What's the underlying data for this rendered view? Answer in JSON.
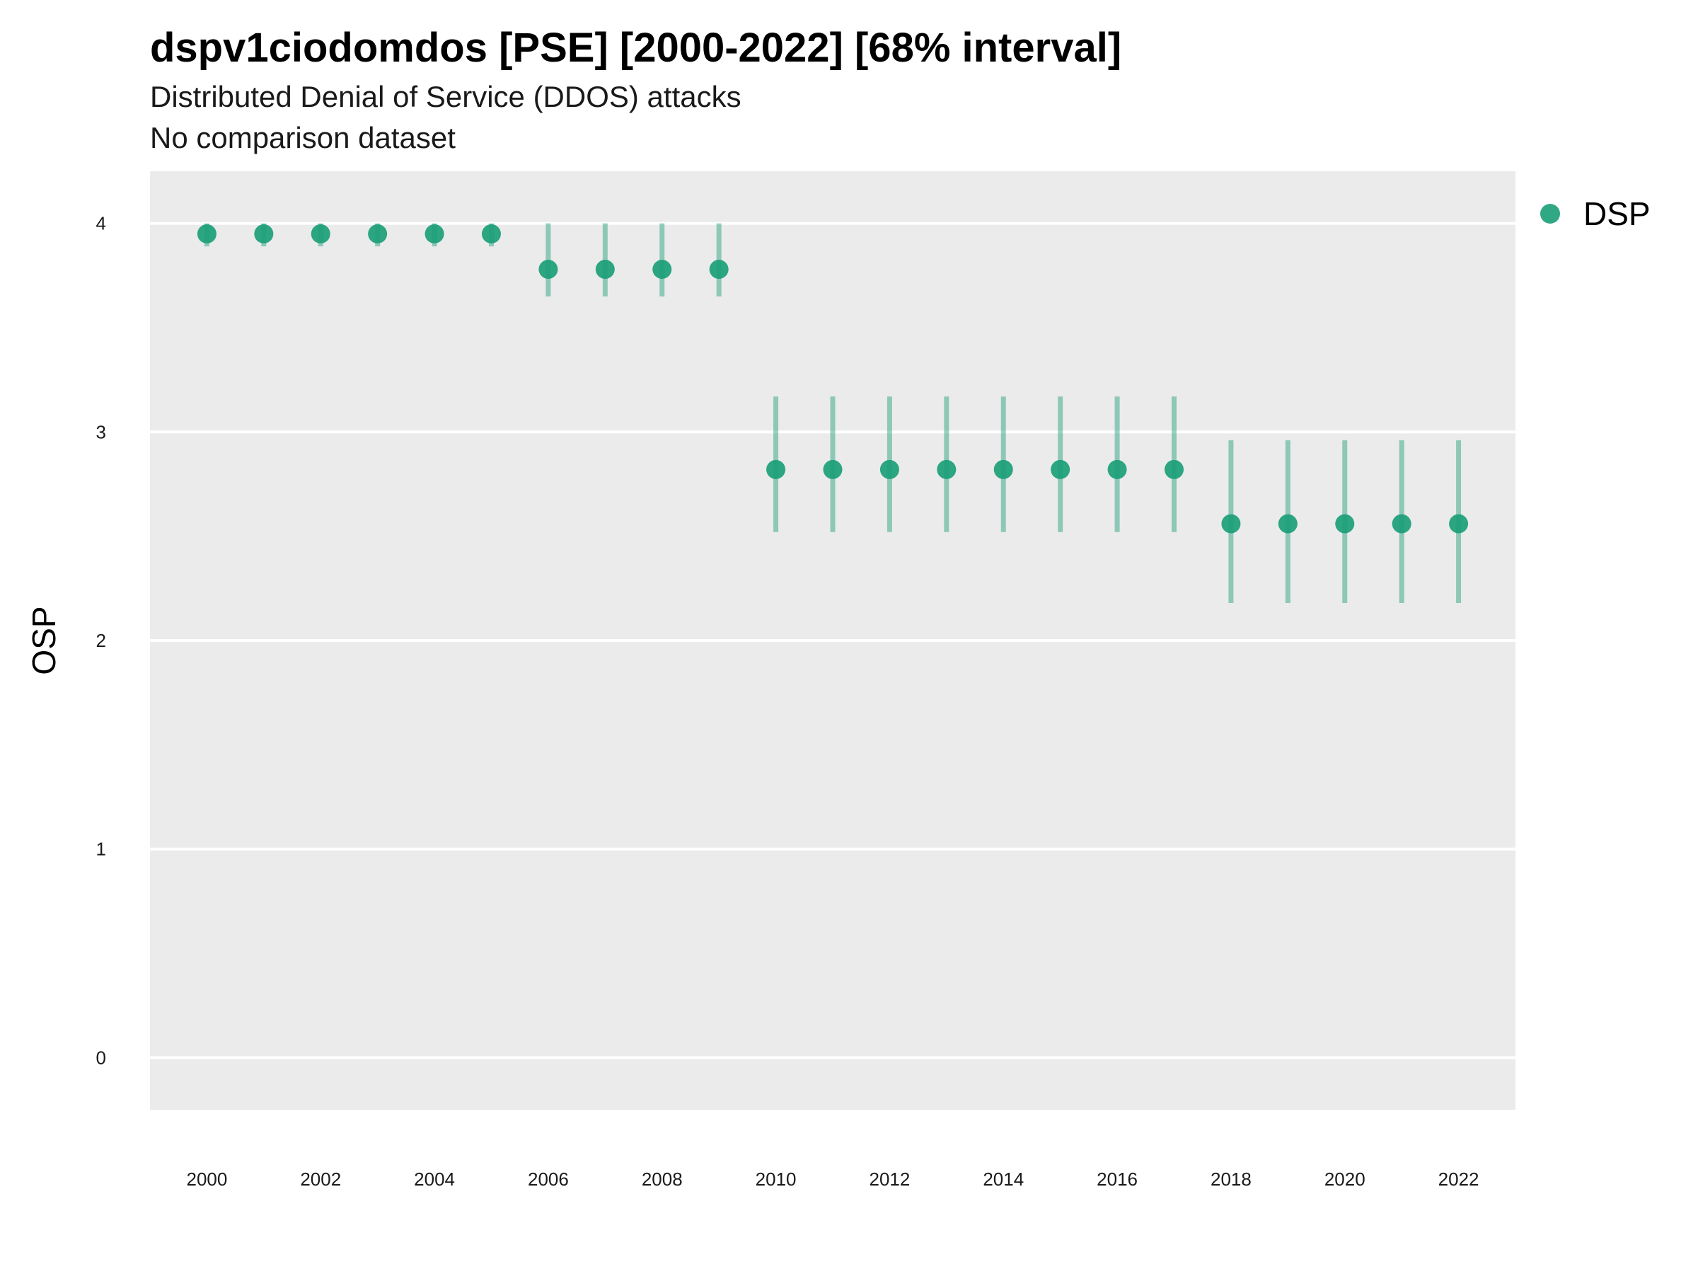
{
  "header": {
    "title": "dspv1ciodomdos [PSE] [2000-2022] [68% interval]",
    "subtitle": "Distributed Denial of Service (DDOS) attacks",
    "comparison_note": "No comparison dataset"
  },
  "chart_data": {
    "type": "scatter",
    "title": "dspv1ciodomdos [PSE] [2000-2022] [68% interval]",
    "subtitle": "Distributed Denial of Service (DDOS) attacks",
    "xlabel": "",
    "ylabel": "OSP",
    "xlim": [
      1999,
      2023
    ],
    "ylim": [
      -0.25,
      4.25
    ],
    "x_ticks": [
      2000,
      2002,
      2004,
      2006,
      2008,
      2010,
      2012,
      2014,
      2016,
      2018,
      2020,
      2022
    ],
    "y_ticks": [
      0,
      1,
      2,
      3,
      4
    ],
    "grid": "horizontal",
    "legend_position": "right",
    "colors": {
      "point": "#1b9e77",
      "interval": "#1b9e77",
      "panel_background": "#ebebeb",
      "gridline": "#ffffff"
    },
    "series": [
      {
        "name": "DSP",
        "x": [
          2000,
          2001,
          2002,
          2003,
          2004,
          2005,
          2006,
          2007,
          2008,
          2009,
          2010,
          2011,
          2012,
          2013,
          2014,
          2015,
          2016,
          2017,
          2018,
          2019,
          2020,
          2021,
          2022
        ],
        "y": [
          3.95,
          3.95,
          3.95,
          3.95,
          3.95,
          3.95,
          3.78,
          3.78,
          3.78,
          3.78,
          2.82,
          2.82,
          2.82,
          2.82,
          2.82,
          2.82,
          2.82,
          2.82,
          2.56,
          2.56,
          2.56,
          2.56,
          2.56
        ],
        "lower": [
          3.89,
          3.89,
          3.89,
          3.89,
          3.89,
          3.89,
          3.65,
          3.65,
          3.65,
          3.65,
          2.52,
          2.52,
          2.52,
          2.52,
          2.52,
          2.52,
          2.52,
          2.52,
          2.18,
          2.18,
          2.18,
          2.18,
          2.18
        ],
        "upper": [
          4.0,
          4.0,
          4.0,
          4.0,
          4.0,
          4.0,
          4.0,
          4.0,
          4.0,
          4.0,
          3.17,
          3.17,
          3.17,
          3.17,
          3.17,
          3.17,
          3.17,
          3.17,
          2.96,
          2.96,
          2.96,
          2.96,
          2.96
        ]
      }
    ]
  }
}
